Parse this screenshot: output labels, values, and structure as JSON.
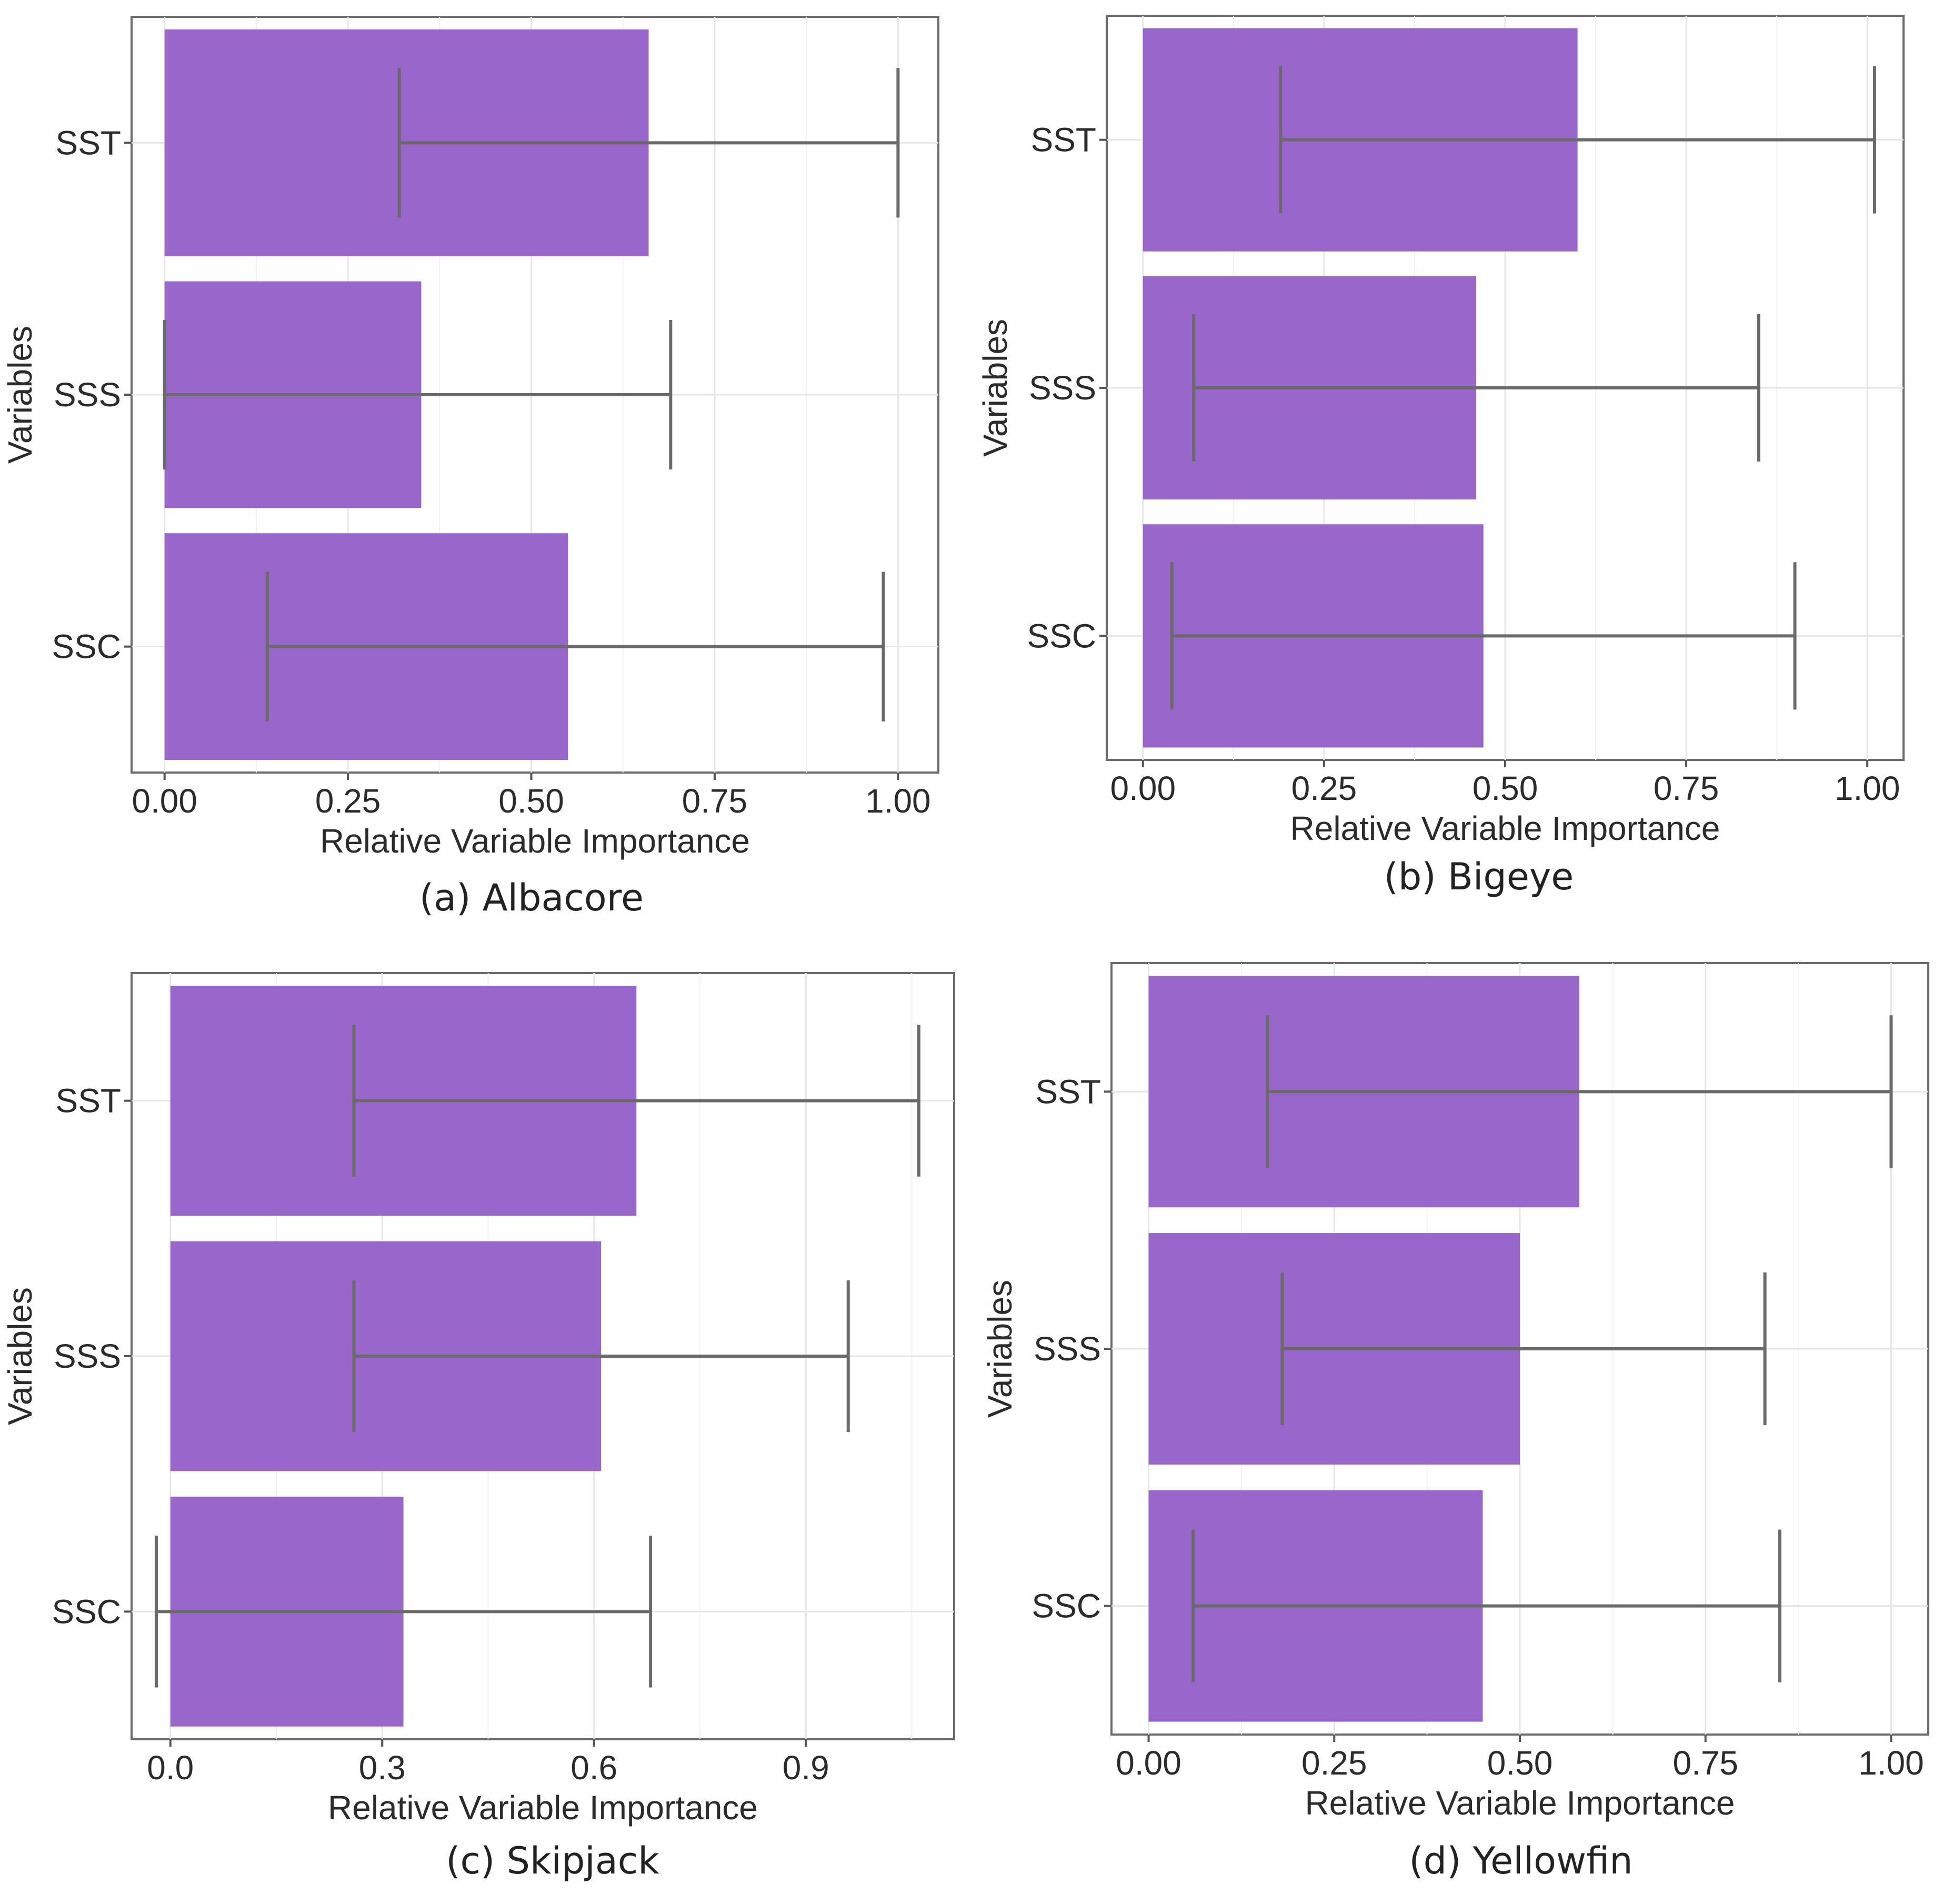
{
  "chart_data": [
    {
      "type": "bar",
      "orientation": "horizontal",
      "caption": "(a)  Albacore",
      "xlabel": "Relative Variable Importance",
      "ylabel": "Variables",
      "xlim": [
        -0.045,
        1.055
      ],
      "xticks": [
        0,
        0.25,
        0.5,
        0.75,
        1.0
      ],
      "xtick_labels": [
        "0.00",
        "0.25",
        "0.50",
        "0.75",
        "1.00"
      ],
      "categories": [
        "SST",
        "SSS",
        "SSC"
      ],
      "values": [
        0.66,
        0.35,
        0.55
      ],
      "error_low": [
        0.32,
        0.0,
        0.14
      ],
      "error_high": [
        1.0,
        0.69,
        0.98
      ]
    },
    {
      "type": "bar",
      "orientation": "horizontal",
      "caption": "(b) Bigeye",
      "xlabel": "Relative Variable Importance",
      "ylabel": "Variables",
      "xlim": [
        -0.05,
        1.05
      ],
      "xticks": [
        0,
        0.25,
        0.5,
        0.75,
        1.0
      ],
      "xtick_labels": [
        "0.00",
        "0.25",
        "0.50",
        "0.75",
        "1.00"
      ],
      "categories": [
        "SST",
        "SSS",
        "SSC"
      ],
      "values": [
        0.6,
        0.46,
        0.47
      ],
      "error_low": [
        0.19,
        0.07,
        0.04
      ],
      "error_high": [
        1.01,
        0.85,
        0.9
      ]
    },
    {
      "type": "bar",
      "orientation": "horizontal",
      "caption": "(c) Skipjack",
      "xlabel": "Relative Variable Importance",
      "ylabel": "Variables",
      "xlim": [
        -0.055,
        1.11
      ],
      "xticks": [
        0,
        0.3,
        0.6,
        0.9
      ],
      "xtick_labels": [
        "0.0",
        "0.3",
        "0.6",
        "0.9"
      ],
      "categories": [
        "SST",
        "SSS",
        "SSC"
      ],
      "values": [
        0.66,
        0.61,
        0.33
      ],
      "error_low": [
        0.26,
        0.26,
        -0.02
      ],
      "error_high": [
        1.06,
        0.96,
        0.68
      ]
    },
    {
      "type": "bar",
      "orientation": "horizontal",
      "caption": "(d) Yellowfin",
      "xlabel": "Relative Variable Importance",
      "ylabel": "Variables",
      "xlim": [
        -0.05,
        1.05
      ],
      "xticks": [
        0,
        0.25,
        0.5,
        0.75,
        1.0
      ],
      "xtick_labels": [
        "0.00",
        "0.25",
        "0.50",
        "0.75",
        "1.00"
      ],
      "categories": [
        "SST",
        "SSS",
        "SSC"
      ],
      "values": [
        0.58,
        0.5,
        0.45
      ],
      "error_low": [
        0.16,
        0.18,
        0.06
      ],
      "error_high": [
        1.0,
        0.83,
        0.85
      ]
    }
  ],
  "colors": {
    "bar": "#9966cc",
    "error_bar": "#6a6a6a"
  }
}
